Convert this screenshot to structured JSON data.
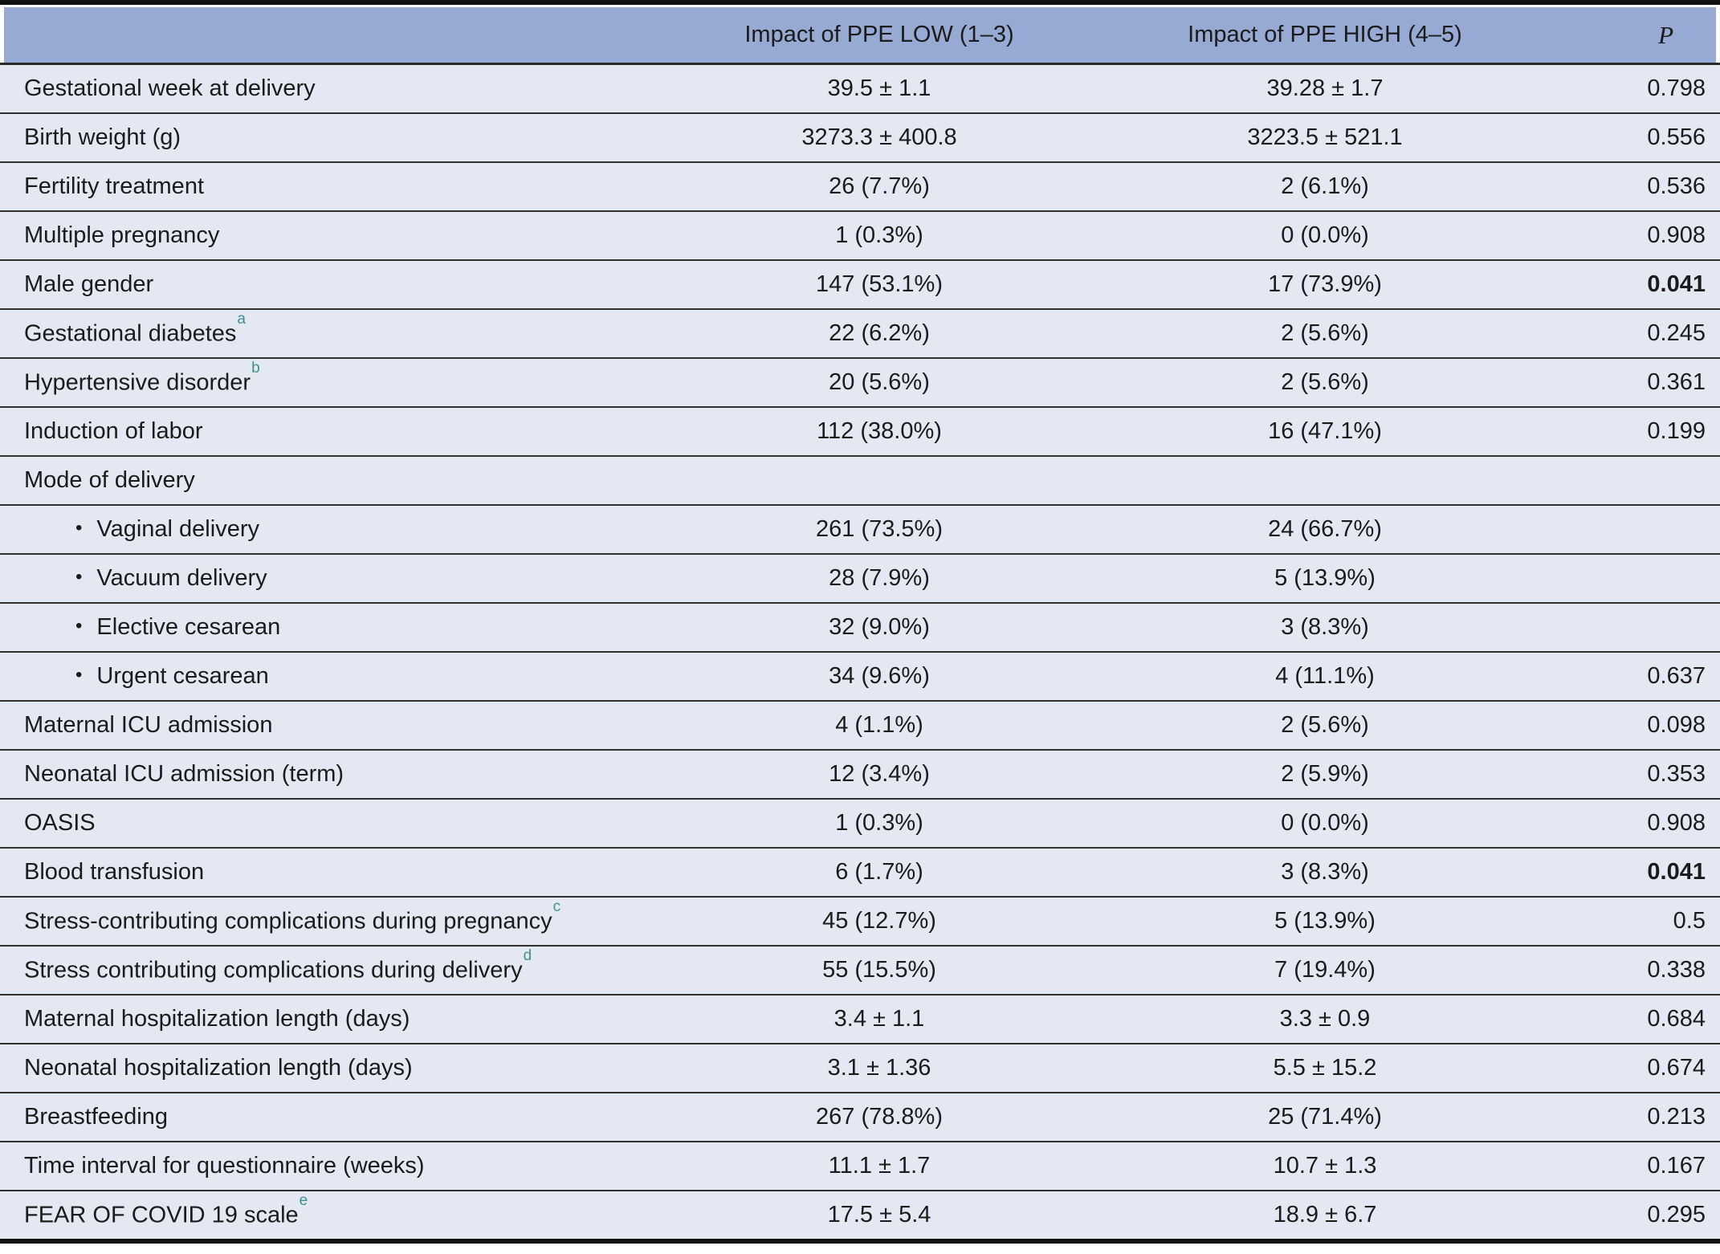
{
  "list_bullet": "•",
  "header": {
    "col_variable": "",
    "col_low": "Impact of PPE LOW (1–3)",
    "col_high": "Impact of PPE HIGH (4–5)",
    "col_p": "P"
  },
  "rows": [
    {
      "label": "Gestational week at delivery",
      "low": "39.5 ± 1.1",
      "high": "39.28 ± 1.7",
      "p": "0.798"
    },
    {
      "label": "Birth weight (g)",
      "low": "3273.3 ± 400.8",
      "high": "3223.5 ± 521.1",
      "p": "0.556"
    },
    {
      "label": "Fertility treatment",
      "low": "26 (7.7%)",
      "high": "2 (6.1%)",
      "p": "0.536"
    },
    {
      "label": "Multiple pregnancy",
      "low": "1 (0.3%)",
      "high": "0 (0.0%)",
      "p": "0.908"
    },
    {
      "label": "Male gender",
      "low": "147 (53.1%)",
      "high": "17 (73.9%)",
      "p": "0.041",
      "p_bold": true
    },
    {
      "label": "Gestational diabetes",
      "sup": "a",
      "low": "22 (6.2%)",
      "high": "2 (5.6%)",
      "p": "0.245"
    },
    {
      "label": "Hypertensive disorder",
      "sup": "b",
      "low": "20 (5.6%)",
      "high": "2 (5.6%)",
      "p": "0.361"
    },
    {
      "label": "Induction of labor",
      "low": "112 (38.0%)",
      "high": "16 (47.1%)",
      "p": "0.199"
    },
    {
      "label": "Mode of delivery",
      "low": "",
      "high": "",
      "p": ""
    },
    {
      "label": "Vaginal delivery",
      "bullet": true,
      "low": "261 (73.5%)",
      "high": "24 (66.7%)",
      "p": ""
    },
    {
      "label": "Vacuum delivery",
      "bullet": true,
      "low": "28 (7.9%)",
      "high": "5 (13.9%)",
      "p": ""
    },
    {
      "label": "Elective cesarean",
      "bullet": true,
      "low": "32 (9.0%)",
      "high": "3 (8.3%)",
      "p": ""
    },
    {
      "label": "Urgent cesarean",
      "bullet": true,
      "low": "34 (9.6%)",
      "high": "4 (11.1%)",
      "p": "0.637"
    },
    {
      "label": "Maternal ICU admission",
      "low": "4 (1.1%)",
      "high": "2 (5.6%)",
      "p": "0.098"
    },
    {
      "label": "Neonatal ICU admission (term)",
      "low": "12 (3.4%)",
      "high": "2 (5.9%)",
      "p": "0.353"
    },
    {
      "label": "OASIS",
      "low": "1 (0.3%)",
      "high": "0 (0.0%)",
      "p": "0.908"
    },
    {
      "label": "Blood transfusion",
      "low": "6 (1.7%)",
      "high": "3 (8.3%)",
      "p": "0.041",
      "p_bold": true
    },
    {
      "label": "Stress-contributing complications during pregnancy",
      "sup": "c",
      "low": "45 (12.7%)",
      "high": "5 (13.9%)",
      "p": "0.5"
    },
    {
      "label": "Stress contributing complications during delivery",
      "sup": "d",
      "low": "55 (15.5%)",
      "high": "7 (19.4%)",
      "p": "0.338"
    },
    {
      "label": "Maternal hospitalization length (days)",
      "low": "3.4 ± 1.1",
      "high": "3.3 ± 0.9",
      "p": "0.684"
    },
    {
      "label": "Neonatal hospitalization length (days)",
      "low": "3.1 ± 1.36",
      "high": "5.5 ± 15.2",
      "p": "0.674"
    },
    {
      "label": "Breastfeeding",
      "low": "267 (78.8%)",
      "high": "25 (71.4%)",
      "p": "0.213"
    },
    {
      "label": "Time interval for questionnaire (weeks)",
      "low": "11.1 ± 1.7",
      "high": "10.7 ± 1.3",
      "p": "0.167"
    },
    {
      "label": "FEAR OF COVID 19 scale",
      "sup": "e",
      "low": "17.5 ± 5.4",
      "high": "18.9 ± 6.7",
      "p": "0.295"
    }
  ],
  "colors": {
    "header_bg": "#96aad4",
    "row_bg": "#e4e8f3",
    "row_border": "#303030",
    "frame_bar": "#101010",
    "superscript": "#3f908e",
    "text": "#1b1b1b"
  }
}
